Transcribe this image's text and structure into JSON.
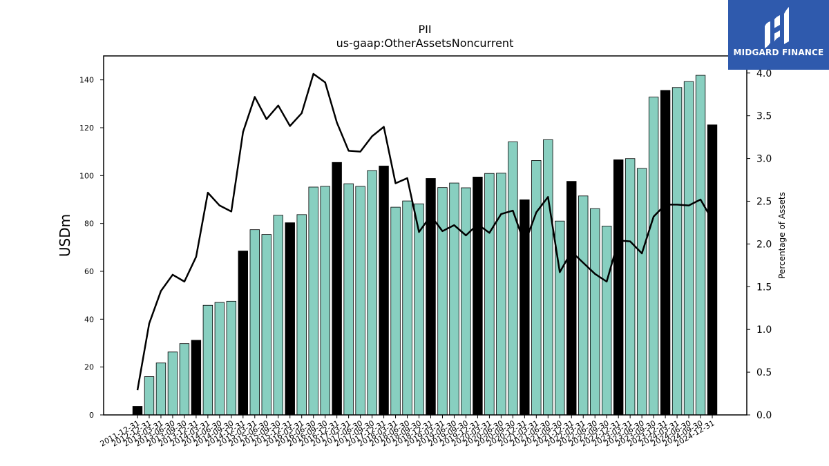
{
  "chart_data": {
    "type": "bar",
    "title": "PII",
    "subtitle": "us-gaap:OtherAssetsNoncurrent",
    "ylabel": "USDm",
    "y2label": "Percentage of Assets",
    "ylim": [
      0,
      150
    ],
    "y2lim": [
      0,
      4.2
    ],
    "yticks": [
      0,
      20,
      40,
      60,
      80,
      100,
      120,
      140
    ],
    "y2ticks": [
      "0.0",
      "0.5",
      "1.0",
      "1.5",
      "2.0",
      "2.5",
      "3.0",
      "3.5",
      "4.0"
    ],
    "categories": [
      "2011-12-31",
      "2012-12-31",
      "2013-03-31",
      "2013-06-30",
      "2013-09-30",
      "2013-12-31",
      "2014-03-31",
      "2014-06-30",
      "2014-09-30",
      "2014-12-31",
      "2015-03-31",
      "2015-06-30",
      "2015-09-30",
      "2015-12-31",
      "2016-03-31",
      "2016-06-30",
      "2016-09-30",
      "2016-12-31",
      "2017-03-31",
      "2017-06-30",
      "2017-09-30",
      "2017-12-31",
      "2018-03-31",
      "2018-06-30",
      "2018-09-30",
      "2018-12-31",
      "2019-03-31",
      "2019-06-30",
      "2019-09-30",
      "2019-12-31",
      "2020-03-31",
      "2020-06-30",
      "2020-09-30",
      "2020-12-31",
      "2021-03-31",
      "2021-06-30",
      "2021-09-30",
      "2021-12-31",
      "2022-03-31",
      "2022-06-30",
      "2022-09-30",
      "2022-12-31",
      "2023-03-31",
      "2023-06-30",
      "2023-09-30",
      "2023-12-31",
      "2024-03-31",
      "2024-06-30",
      "2024-09-30",
      "2024-12-31"
    ],
    "series": [
      {
        "type": "bar",
        "values": [
          3.6,
          16.0,
          21.7,
          26.3,
          29.8,
          31.2,
          45.8,
          47.0,
          47.5,
          68.5,
          77.4,
          75.4,
          83.4,
          80.3,
          83.7,
          95.2,
          95.5,
          105.5,
          96.6,
          95.5,
          102.1,
          104.0,
          86.8,
          89.4,
          88.2,
          98.8,
          95.0,
          96.9,
          94.9,
          99.4,
          100.9,
          101.0,
          114.1,
          89.9,
          106.3,
          115.0,
          81.0,
          97.6,
          91.5,
          86.2,
          78.9,
          106.6,
          107.1,
          103.0,
          132.8,
          135.6,
          136.8,
          139.3,
          141.9,
          121.2
        ],
        "highlight": [
          1,
          0,
          0,
          0,
          0,
          1,
          0,
          0,
          0,
          1,
          0,
          0,
          0,
          1,
          0,
          0,
          0,
          1,
          0,
          0,
          0,
          1,
          0,
          0,
          0,
          1,
          0,
          0,
          0,
          1,
          0,
          0,
          0,
          1,
          0,
          0,
          0,
          1,
          0,
          0,
          0,
          1,
          0,
          0,
          0,
          1,
          0,
          0,
          0,
          1
        ]
      },
      {
        "type": "line",
        "axis": "right",
        "values": [
          0.29,
          1.07,
          1.45,
          1.64,
          1.56,
          1.85,
          2.6,
          2.45,
          2.38,
          3.31,
          3.72,
          3.46,
          3.62,
          3.38,
          3.53,
          3.99,
          3.89,
          3.42,
          3.09,
          3.08,
          3.26,
          3.37,
          2.71,
          2.77,
          2.14,
          2.33,
          2.15,
          2.22,
          2.1,
          2.23,
          2.13,
          2.35,
          2.39,
          2.0,
          2.37,
          2.55,
          1.67,
          1.91,
          1.78,
          1.65,
          1.56,
          2.04,
          2.03,
          1.89,
          2.32,
          2.46,
          2.46,
          2.45,
          2.52,
          2.28
        ]
      }
    ],
    "colors": {
      "bar": "#88cfc0",
      "bar_highlight": "#000000",
      "line": "#000000"
    },
    "legend": "none",
    "grid": false
  },
  "logo": {
    "text": "MIDGARD FINANCE",
    "background": "#2f5aad"
  }
}
